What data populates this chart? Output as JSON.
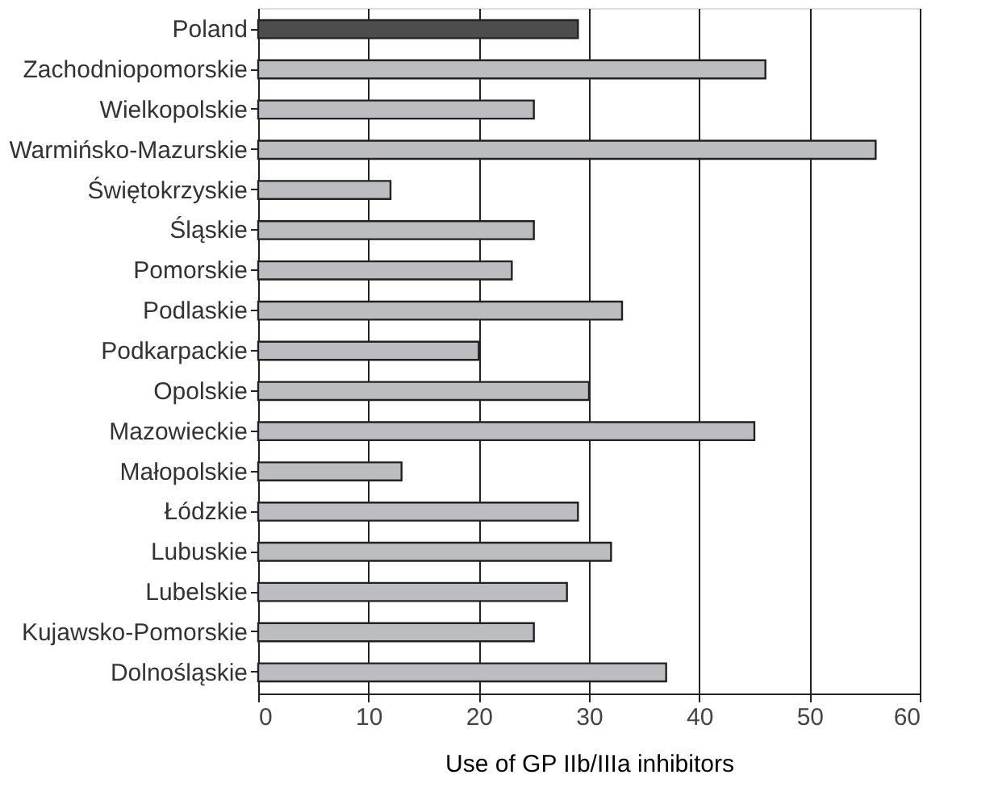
{
  "chart_data": {
    "type": "bar",
    "orientation": "horizontal",
    "xlabel": "Use of GP IIb/IIIa inhibitors",
    "categories": [
      "Poland",
      "Zachodniopomorskie",
      "Wielkopolskie",
      "Warmińsko-Mazurskie",
      "Świętokrzyskie",
      "Śląskie",
      "Pomorskie",
      "Podlaskie",
      "Podkarpackie",
      "Opolskie",
      "Mazowieckie",
      "Małopolskie",
      "Łódzkie",
      "Lubuskie",
      "Lubelskie",
      "Kujawsko-Pomorskie",
      "Dolnośląskie"
    ],
    "values": [
      29,
      46,
      25,
      56,
      12,
      25,
      23,
      33,
      20,
      30,
      45,
      13,
      29,
      32,
      28,
      25,
      37
    ],
    "colors": [
      "#4d4d4d",
      "#bcbdc1",
      "#bcbdc1",
      "#bcbdc1",
      "#bcbdc1",
      "#bcbdc1",
      "#bcbdc1",
      "#bcbdc1",
      "#bcbdc1",
      "#bcbdc1",
      "#bcbdc1",
      "#bcbdc1",
      "#bcbdc1",
      "#bcbdc1",
      "#bcbdc1",
      "#bcbdc1",
      "#bcbdc1"
    ],
    "xlim": [
      0,
      60
    ],
    "xticks": [
      0,
      10,
      20,
      30,
      40,
      50,
      60
    ],
    "grid": "x"
  }
}
